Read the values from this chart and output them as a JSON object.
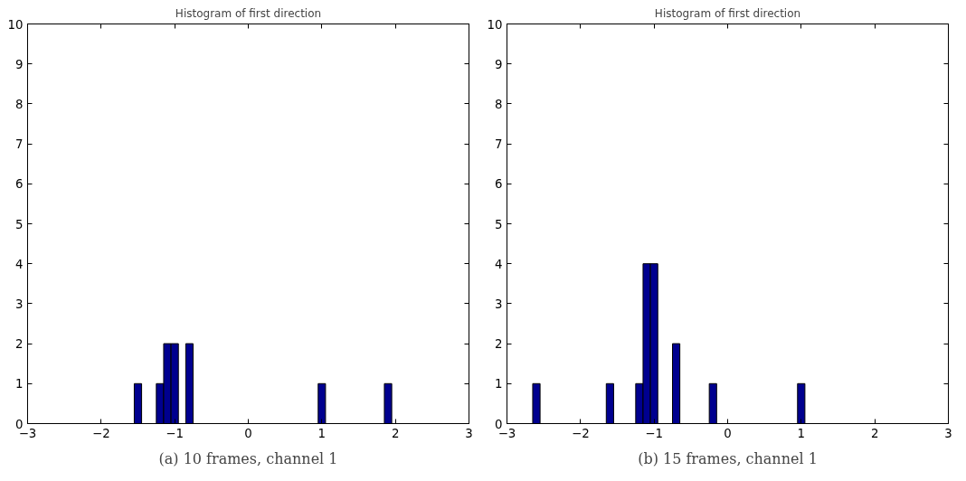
{
  "chart_data": [
    {
      "type": "histogram",
      "title": "Histogram of first direction",
      "color": "#00008f",
      "bins": [
        -1.55,
        -1.45,
        -1.35,
        -1.25,
        -1.15,
        -1.05,
        -0.95,
        -0.85,
        -0.75,
        -0.65,
        -0.55,
        -0.45,
        -0.35,
        -0.25,
        -0.15,
        -0.05,
        0.05,
        0.15,
        0.25,
        0.35,
        0.45,
        0.55,
        0.65,
        0.75,
        0.85,
        0.95,
        1.05,
        1.15,
        1.25,
        1.35,
        1.45,
        1.55,
        1.65,
        1.75,
        1.85,
        1.95
      ],
      "values": [
        1,
        0,
        0,
        1,
        2,
        2,
        0,
        2,
        0,
        0,
        0,
        0,
        0,
        0,
        0,
        0,
        0,
        0,
        0,
        0,
        0,
        0,
        0,
        0,
        0,
        1,
        0,
        0,
        0,
        0,
        0,
        0,
        0,
        0,
        1
      ],
      "xlim": [
        -3,
        3
      ],
      "ylim": [
        0,
        10
      ],
      "xticks": [
        {
          "value": -3,
          "label": "−3"
        },
        {
          "value": -2,
          "label": "−2"
        },
        {
          "value": -1,
          "label": "−1"
        },
        0,
        1,
        2,
        3
      ],
      "yticks": [
        0,
        1,
        2,
        3,
        4,
        5,
        6,
        7,
        8,
        9,
        10
      ],
      "grid": false,
      "annotations": [
        "(a) 10 frames, channel 1"
      ]
    },
    {
      "type": "histogram",
      "title": "Histogram of first direction",
      "color": "#00008f",
      "bins": [
        -2.65,
        -2.55,
        -2.45,
        -2.35,
        -2.25,
        -2.15,
        -2.05,
        -1.95,
        -1.85,
        -1.75,
        -1.65,
        -1.55,
        -1.45,
        -1.35,
        -1.25,
        -1.15,
        -1.05,
        -0.95,
        -0.85,
        -0.75,
        -0.65,
        -0.55,
        -0.45,
        -0.35,
        -0.25,
        -0.15,
        -0.05,
        0.05,
        0.15,
        0.25,
        0.35,
        0.45,
        0.55,
        0.65,
        0.75,
        0.85,
        0.95,
        1.05
      ],
      "values": [
        1,
        0,
        0,
        0,
        0,
        0,
        0,
        0,
        0,
        0,
        1,
        0,
        0,
        0,
        1,
        4,
        4,
        0,
        0,
        2,
        0,
        0,
        0,
        0,
        1,
        0,
        0,
        0,
        0,
        0,
        0,
        0,
        0,
        0,
        0,
        0,
        1
      ],
      "xlim": [
        -3,
        3
      ],
      "ylim": [
        0,
        10
      ],
      "xticks": [
        {
          "value": -3,
          "label": "−3"
        },
        {
          "value": -2,
          "label": "−2"
        },
        {
          "value": -1,
          "label": "−1"
        },
        0,
        1,
        2,
        3
      ],
      "yticks": [
        0,
        1,
        2,
        3,
        4,
        5,
        6,
        7,
        8,
        9,
        10
      ],
      "grid": false,
      "annotations": [
        "(b) 15 frames, channel 1"
      ]
    }
  ]
}
